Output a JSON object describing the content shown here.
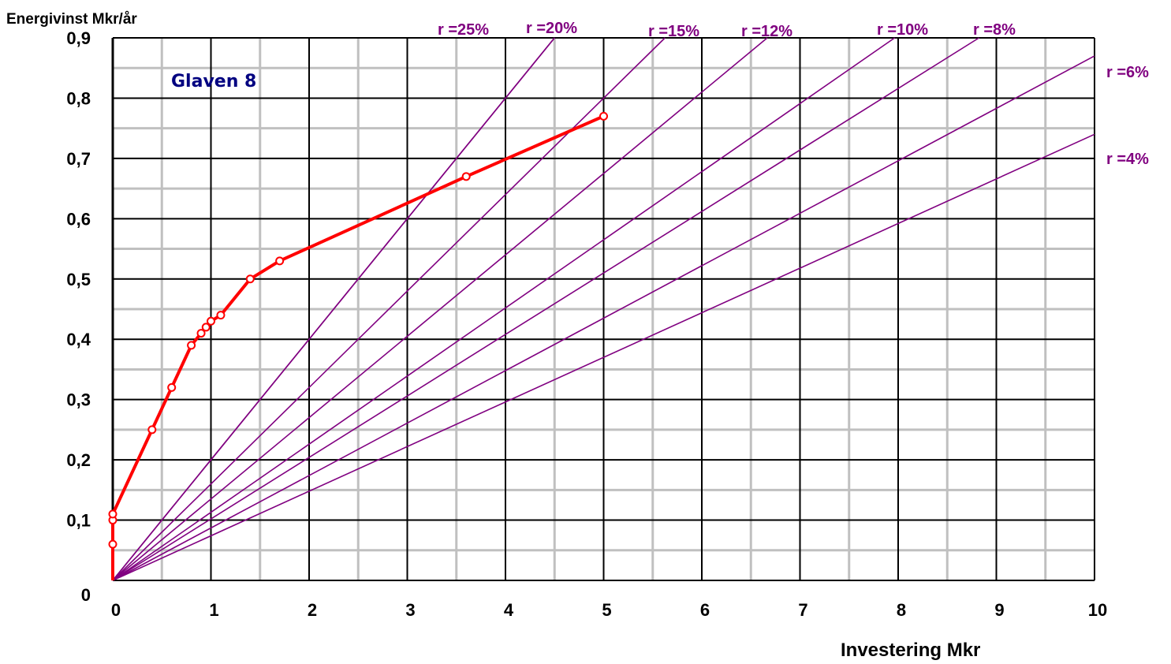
{
  "chart_data": {
    "type": "line",
    "title": "Glaven 8",
    "xlabel": "Investering Mkr",
    "ylabel": "Energivinst Mkr/år",
    "xlim": [
      0,
      10
    ],
    "ylim": [
      0,
      0.9
    ],
    "x_ticks": [
      "0",
      "1",
      "2",
      "3",
      "4",
      "5",
      "6",
      "7",
      "8",
      "9",
      "10"
    ],
    "y_ticks": [
      "0",
      "0,1",
      "0,2",
      "0,3",
      "0,4",
      "0,5",
      "0,6",
      "0,7",
      "0,8",
      "0,9"
    ],
    "grid": true,
    "series": [
      {
        "values": [
          {
            "x": 0,
            "y": 0
          },
          {
            "x": 0,
            "y": 0.06
          },
          {
            "x": 0,
            "y": 0.1
          },
          {
            "x": 0,
            "y": 0.11
          },
          {
            "x": 0.4,
            "y": 0.25
          },
          {
            "x": 0.6,
            "y": 0.32
          },
          {
            "x": 0.8,
            "y": 0.39
          },
          {
            "x": 0.9,
            "y": 0.41
          },
          {
            "x": 0.95,
            "y": 0.42
          },
          {
            "x": 1.0,
            "y": 0.43
          },
          {
            "x": 1.1,
            "y": 0.44
          },
          {
            "x": 1.4,
            "y": 0.5
          },
          {
            "x": 1.7,
            "y": 0.53
          },
          {
            "x": 3.6,
            "y": 0.67
          },
          {
            "x": 5.0,
            "y": 0.77
          }
        ]
      }
    ],
    "reference_lines": [
      {
        "label": "r =25%",
        "slope": 0.2
      },
      {
        "label": "r =20%",
        "slope": 0.2
      },
      {
        "label": "r =15%",
        "slope": 0.16
      },
      {
        "label": "r =12%",
        "slope": 0.135
      },
      {
        "label": "r =10%",
        "slope": 0.113
      },
      {
        "label": "r =8%",
        "slope": 0.102
      },
      {
        "label": "r =6%",
        "slope": 0.087
      },
      {
        "label": "r =4%",
        "slope": 0.074
      }
    ],
    "colors": {
      "series": "#ff0000",
      "reference": "#800080",
      "title": "#000080",
      "major_grid": "#000000",
      "minor_grid": "#c0c0c0"
    }
  }
}
